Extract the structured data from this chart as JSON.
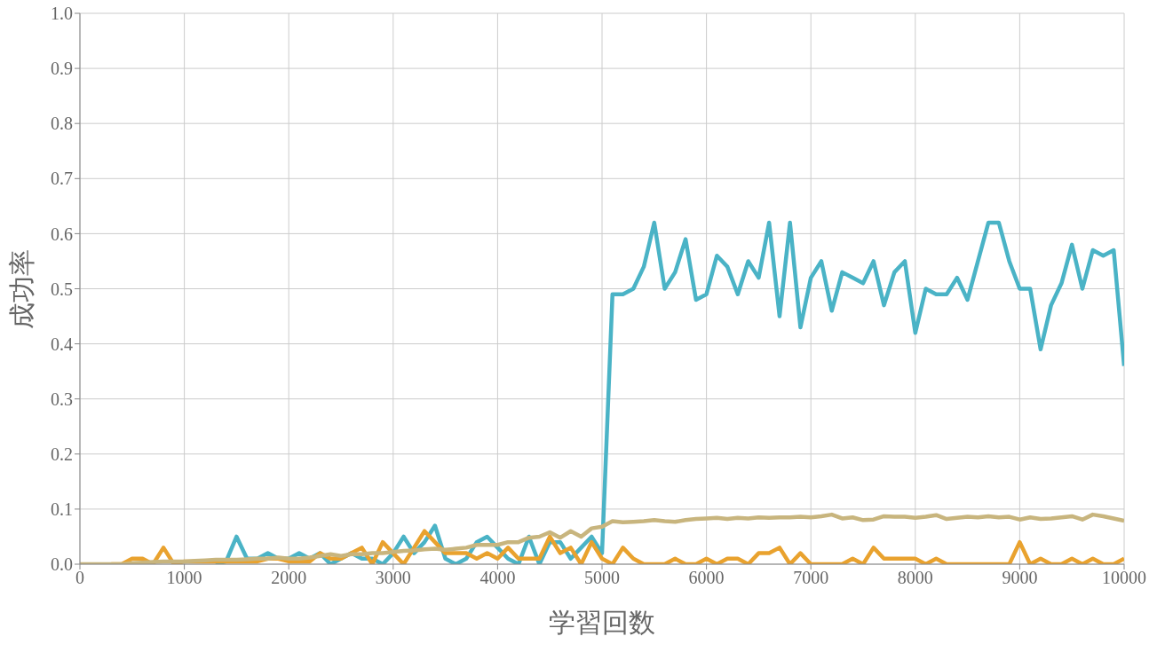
{
  "chart_data": {
    "type": "line",
    "xlabel": "学習回数",
    "ylabel": "成功率",
    "x": [
      0,
      100,
      200,
      300,
      400,
      500,
      600,
      700,
      800,
      900,
      1000,
      1100,
      1200,
      1300,
      1400,
      1500,
      1600,
      1700,
      1800,
      1900,
      2000,
      2100,
      2200,
      2300,
      2400,
      2500,
      2600,
      2700,
      2800,
      2900,
      3000,
      3100,
      3200,
      3300,
      3400,
      3500,
      3600,
      3700,
      3800,
      3900,
      4000,
      4100,
      4200,
      4300,
      4400,
      4500,
      4600,
      4700,
      4800,
      4900,
      5000,
      5100,
      5200,
      5300,
      5400,
      5500,
      5600,
      5700,
      5800,
      5900,
      6000,
      6100,
      6200,
      6300,
      6400,
      6500,
      6600,
      6700,
      6800,
      6900,
      7000,
      7100,
      7200,
      7300,
      7400,
      7500,
      7600,
      7700,
      7800,
      7900,
      8000,
      8100,
      8200,
      8300,
      8400,
      8500,
      8600,
      8700,
      8800,
      8900,
      9000,
      9100,
      9200,
      9300,
      9400,
      9500,
      9600,
      9700,
      9800,
      9900,
      10000
    ],
    "series": [
      {
        "color": "#4ab3c6",
        "values": [
          null,
          null,
          null,
          null,
          null,
          null,
          null,
          null,
          null,
          null,
          null,
          null,
          null,
          0,
          0.005,
          0.05,
          0.01,
          0.01,
          0.02,
          0.01,
          0.01,
          0.02,
          0.01,
          0.02,
          0,
          0.01,
          0.02,
          0.01,
          0.01,
          0,
          0.02,
          0.05,
          0.02,
          0.04,
          0.07,
          0.01,
          0,
          0.01,
          0.04,
          0.05,
          0.03,
          0.01,
          0,
          0.05,
          0,
          0.04,
          0.04,
          0.01,
          0.03,
          0.05,
          0.02,
          0.49,
          0.49,
          0.5,
          0.54,
          0.62,
          0.5,
          0.53,
          0.59,
          0.48,
          0.49,
          0.56,
          0.54,
          0.49,
          0.55,
          0.52,
          0.62,
          0.45,
          0.62,
          0.43,
          0.52,
          0.55,
          0.46,
          0.53,
          0.52,
          0.51,
          0.55,
          0.47,
          0.53,
          0.55,
          0.42,
          0.5,
          0.49,
          0.49,
          0.52,
          0.48,
          0.55,
          0.62,
          0.62,
          0.55,
          0.5,
          0.5,
          0.39,
          0.47,
          0.51,
          0.58,
          0.5,
          0.57,
          0.56,
          0.57,
          0.36
        ]
      },
      {
        "color": "#e9a22e",
        "values": [
          null,
          null,
          null,
          0,
          0,
          0.01,
          0.01,
          0,
          0.03,
          0,
          0.005,
          0.005,
          0.005,
          0.005,
          0.005,
          0.005,
          0.005,
          0.005,
          0.01,
          0.01,
          0.005,
          0.005,
          0.005,
          0.02,
          0.01,
          0.01,
          0.02,
          0.03,
          0,
          0.04,
          0.02,
          0,
          0.03,
          0.06,
          0.04,
          0.02,
          0.02,
          0.02,
          0.01,
          0.02,
          0.01,
          0.03,
          0.01,
          0.01,
          0.01,
          0.05,
          0.02,
          0.03,
          0,
          0.04,
          0.01,
          0,
          0.03,
          0.01,
          0,
          0,
          0,
          0.01,
          0,
          0,
          0.01,
          0,
          0.01,
          0.01,
          0,
          0.02,
          0.02,
          0.03,
          0,
          0.02,
          0,
          0,
          0,
          0,
          0.01,
          0,
          0.03,
          0.01,
          0.01,
          0.01,
          0.01,
          0,
          0.01,
          0,
          0,
          0,
          0,
          0,
          0,
          0,
          0.04,
          0,
          0.01,
          0,
          0,
          0.01,
          0,
          0.01,
          0,
          0,
          0.01
        ]
      },
      {
        "color": "#c8b57e",
        "values": [
          0,
          0,
          0,
          0,
          0,
          0.002,
          0.003,
          0.004,
          0.005,
          0.005,
          0.005,
          0.006,
          0.007,
          0.008,
          0.008,
          0.008,
          0.009,
          0.01,
          0.01,
          0.012,
          0.01,
          0.01,
          0.012,
          0.015,
          0.018,
          0.015,
          0.018,
          0.018,
          0.02,
          0.02,
          0.022,
          0.024,
          0.025,
          0.027,
          0.028,
          0.026,
          0.028,
          0.03,
          0.035,
          0.035,
          0.035,
          0.04,
          0.04,
          0.048,
          0.05,
          0.058,
          0.048,
          0.06,
          0.05,
          0.065,
          0.068,
          0.078,
          0.076,
          0.077,
          0.078,
          0.08,
          0.078,
          0.077,
          0.08,
          0.082,
          0.083,
          0.084,
          0.082,
          0.084,
          0.083,
          0.085,
          0.084,
          0.085,
          0.085,
          0.086,
          0.085,
          0.087,
          0.09,
          0.083,
          0.085,
          0.08,
          0.081,
          0.087,
          0.086,
          0.086,
          0.084,
          0.086,
          0.089,
          0.082,
          0.084,
          0.086,
          0.085,
          0.087,
          0.085,
          0.086,
          0.081,
          0.085,
          0.082,
          0.083,
          0.085,
          0.087,
          0.081,
          0.09,
          0.087,
          0.083,
          0.079
        ]
      }
    ],
    "xlim": [
      0,
      10000
    ],
    "xticks": [
      0,
      1000,
      2000,
      3000,
      4000,
      5000,
      6000,
      7000,
      8000,
      9000,
      10000
    ],
    "ylim": [
      0,
      1
    ],
    "yticks": [
      {
        "value": 0,
        "label": "0.0"
      },
      {
        "value": 0.1,
        "label": "0.1"
      },
      {
        "value": 0.2,
        "label": "0.2"
      },
      {
        "value": 0.3,
        "label": "0.3"
      },
      {
        "value": 0.4,
        "label": "0.4"
      },
      {
        "value": 0.5,
        "label": "0.5"
      },
      {
        "value": 0.6,
        "label": "0.6"
      },
      {
        "value": 0.7,
        "label": "0.7"
      },
      {
        "value": 0.8,
        "label": "0.8"
      },
      {
        "value": 0.9,
        "label": "0.9"
      },
      {
        "value": 1,
        "label": "1.0"
      }
    ],
    "grid": true,
    "marker": "none",
    "line_style": "solid"
  }
}
